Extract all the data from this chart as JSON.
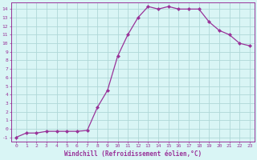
{
  "x": [
    0,
    1,
    2,
    3,
    4,
    5,
    6,
    7,
    8,
    9,
    10,
    11,
    12,
    13,
    14,
    15,
    16,
    17,
    18,
    19,
    20,
    21,
    22,
    23
  ],
  "y": [
    -1,
    -0.5,
    -0.5,
    -0.3,
    -0.3,
    -0.3,
    -0.3,
    -0.2,
    2.5,
    4.5,
    8.5,
    11.0,
    13.0,
    14.3,
    14.0,
    14.3,
    14.0,
    14.0,
    14.0,
    12.5,
    11.5,
    11.0,
    10.0,
    9.7
  ],
  "line_color": "#993399",
  "marker": "D",
  "marker_size": 2,
  "bg_color": "#d9f5f5",
  "grid_color": "#b0d8d8",
  "xlabel": "Windchill (Refroidissement éolien,°C)",
  "ylabel_ticks": [
    -1,
    0,
    1,
    2,
    3,
    4,
    5,
    6,
    7,
    8,
    9,
    10,
    11,
    12,
    13,
    14
  ],
  "xlim": [
    -0.5,
    23.5
  ],
  "ylim": [
    -1.5,
    14.8
  ],
  "tick_color": "#993399",
  "label_color": "#993399"
}
